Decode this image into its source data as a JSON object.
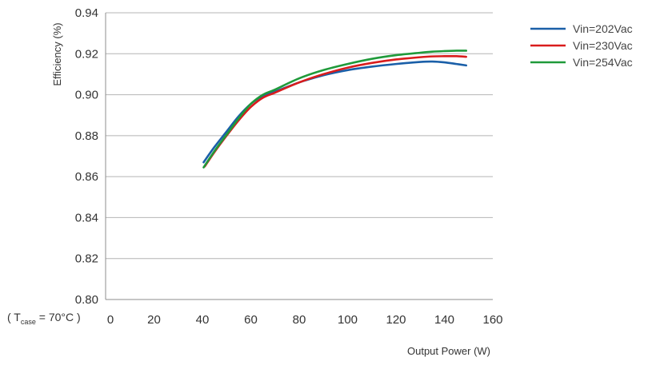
{
  "chart_data": {
    "type": "line",
    "title": "",
    "xlabel": "Output Power (W)",
    "ylabel": "Efficiency (%)",
    "xlim": [
      0,
      160
    ],
    "ylim": [
      0.8,
      0.94
    ],
    "xticks": [
      "0",
      "20",
      "40",
      "60",
      "80",
      "100",
      "120",
      "140",
      "160"
    ],
    "yticks": [
      "0.80",
      "0.82",
      "0.84",
      "0.86",
      "0.88",
      "0.90",
      "0.92",
      "0.94"
    ],
    "grid": "horizontal",
    "legend_position": "top-right",
    "annotation": {
      "prefix": "( T",
      "sub": "case",
      "suffix": " = 70°C )"
    },
    "series": [
      {
        "name": "Vin=202Vac",
        "color": "#1a5fa8",
        "x": [
          40.5,
          45,
          50,
          55,
          60,
          65,
          70,
          80,
          90,
          100,
          110,
          120,
          130,
          135,
          140,
          145,
          149
        ],
        "y": [
          0.867,
          0.8745,
          0.882,
          0.8895,
          0.8955,
          0.8995,
          0.9015,
          0.906,
          0.9095,
          0.912,
          0.9137,
          0.915,
          0.916,
          0.9162,
          0.9158,
          0.915,
          0.9143
        ]
      },
      {
        "name": "Vin=230Vac",
        "color": "#d91c1c",
        "x": [
          41,
          45,
          50,
          55,
          60,
          65,
          70,
          80,
          90,
          100,
          110,
          120,
          130,
          135,
          140,
          145,
          149
        ],
        "y": [
          0.865,
          0.872,
          0.88,
          0.8875,
          0.894,
          0.8985,
          0.901,
          0.906,
          0.91,
          0.9132,
          0.9155,
          0.9172,
          0.9183,
          0.9187,
          0.9188,
          0.9188,
          0.9185
        ]
      },
      {
        "name": "Vin=254Vac",
        "color": "#1f9a3a",
        "x": [
          40.5,
          45,
          50,
          55,
          60,
          65,
          70,
          80,
          90,
          100,
          110,
          120,
          130,
          135,
          140,
          145,
          149
        ],
        "y": [
          0.8645,
          0.8725,
          0.8805,
          0.8885,
          0.8955,
          0.9,
          0.9025,
          0.908,
          0.912,
          0.915,
          0.9175,
          0.9193,
          0.9205,
          0.921,
          0.9213,
          0.9215,
          0.9215
        ]
      }
    ]
  }
}
